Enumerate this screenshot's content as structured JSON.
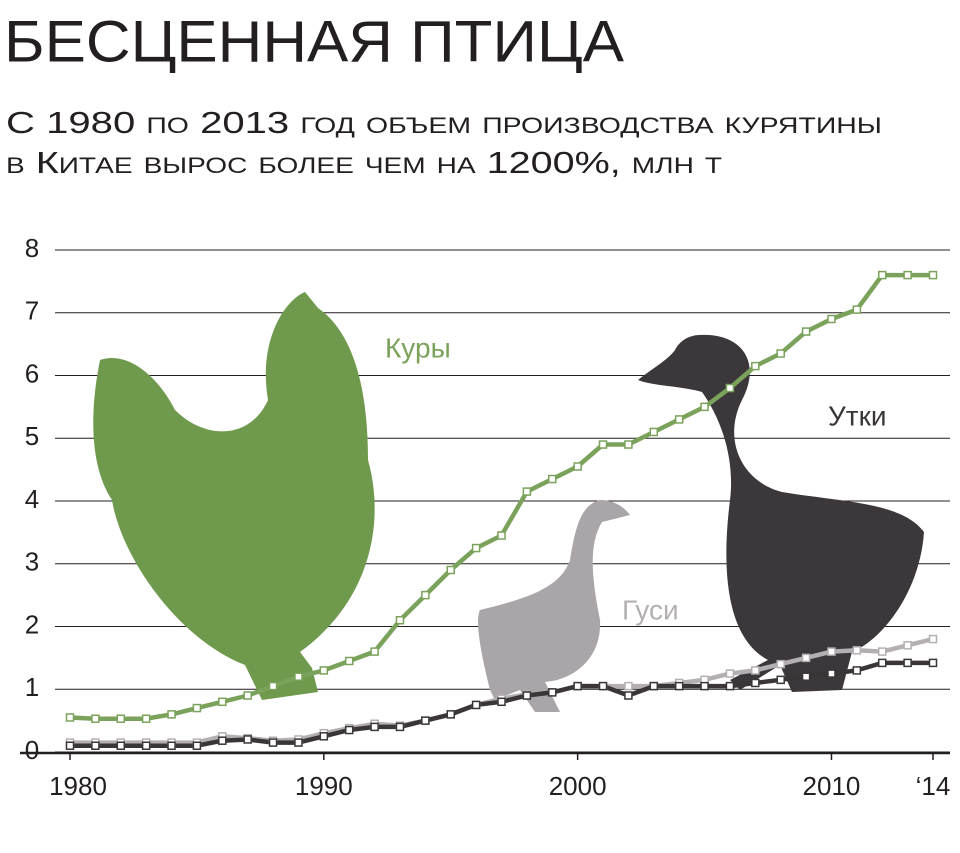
{
  "chart_data": {
    "type": "line",
    "title": "БЕСЦЕННАЯ ПТИЦА",
    "subtitle": [
      "С 1980 по 2013 год объем производства курятины",
      "в Китае вырос более чем на 1200%, млн т"
    ],
    "x": [
      1980,
      1981,
      1982,
      1983,
      1984,
      1985,
      1986,
      1987,
      1988,
      1989,
      1990,
      1991,
      1992,
      1993,
      1994,
      1995,
      1996,
      1997,
      1998,
      1999,
      2000,
      2001,
      2002,
      2003,
      2004,
      2005,
      2006,
      2007,
      2008,
      2009,
      2010,
      2011,
      2012,
      2013,
      2014
    ],
    "series": [
      {
        "name": "Куры",
        "color": "#7aa25a",
        "values": [
          0.55,
          0.53,
          0.53,
          0.53,
          0.6,
          0.7,
          0.8,
          0.9,
          1.05,
          1.2,
          1.3,
          1.45,
          1.6,
          2.1,
          2.5,
          2.9,
          3.25,
          3.45,
          4.15,
          4.35,
          4.55,
          4.9,
          4.9,
          5.1,
          5.3,
          5.5,
          5.8,
          6.15,
          6.35,
          6.7,
          6.9,
          7.05,
          7.6,
          7.6,
          7.6
        ]
      },
      {
        "name": "Гуси",
        "color": "#b4afb2",
        "values": [
          0.15,
          0.15,
          0.15,
          0.15,
          0.15,
          0.15,
          0.25,
          0.22,
          0.18,
          0.2,
          0.3,
          0.38,
          0.45,
          0.42,
          0.5,
          0.6,
          0.75,
          0.85,
          0.92,
          0.95,
          1.05,
          1.05,
          1.05,
          1.05,
          1.1,
          1.15,
          1.25,
          1.3,
          1.4,
          1.5,
          1.6,
          1.62,
          1.6,
          1.7,
          1.8
        ]
      },
      {
        "name": "Утки",
        "color": "#3a3638",
        "values": [
          0.1,
          0.1,
          0.1,
          0.1,
          0.1,
          0.1,
          0.18,
          0.2,
          0.15,
          0.15,
          0.25,
          0.35,
          0.4,
          0.4,
          0.5,
          0.6,
          0.75,
          0.8,
          0.9,
          0.95,
          1.05,
          1.05,
          0.9,
          1.05,
          1.05,
          1.05,
          1.05,
          1.1,
          1.15,
          1.2,
          1.25,
          1.3,
          1.42,
          1.42,
          1.42
        ]
      }
    ],
    "xlim": [
      1980,
      2014
    ],
    "xticks": [
      1980,
      1990,
      2000,
      2010,
      {
        "value": 2014,
        "label": "‘14"
      }
    ],
    "ylim": [
      0,
      8
    ],
    "yticks": [
      0,
      1,
      2,
      3,
      4,
      5,
      6,
      7,
      8
    ],
    "grid": true
  }
}
